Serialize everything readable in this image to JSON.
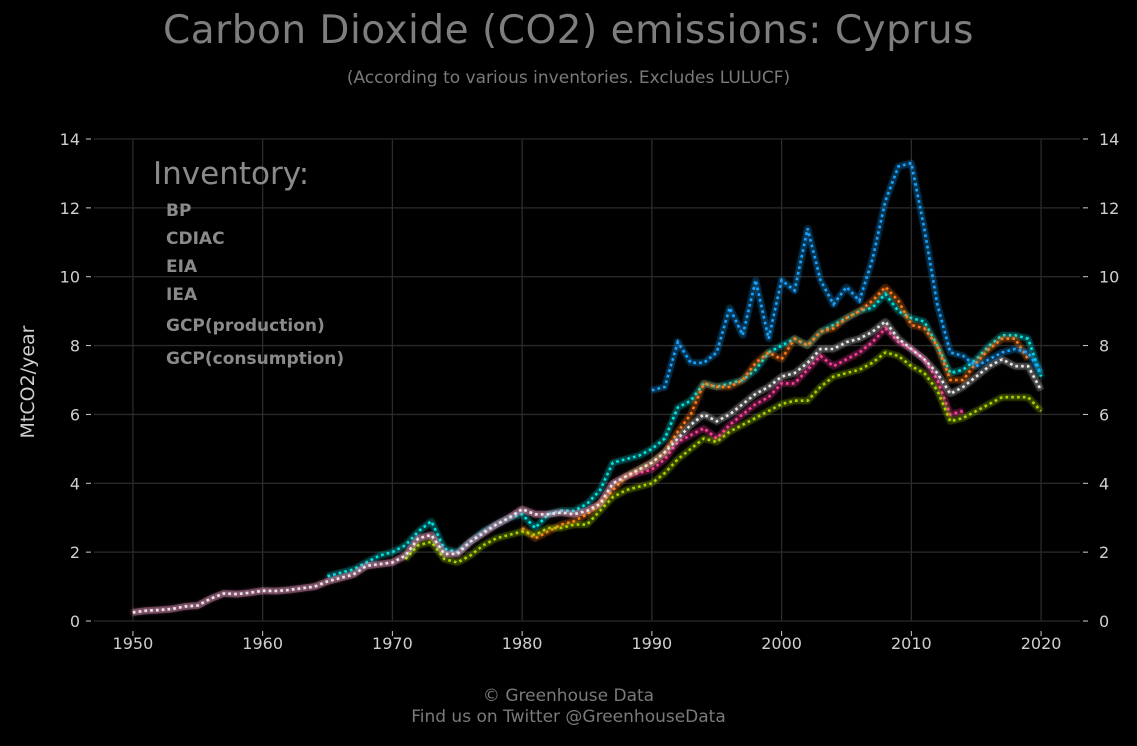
{
  "header": {
    "title": "Carbon Dioxide (CO2) emissions: Cyprus",
    "subtitle": "(According to various inventories. Excludes LULUCF)"
  },
  "footer": {
    "line1": "© Greenhouse Data",
    "line2": "Find us on Twitter @GreenhouseData"
  },
  "chart_data": {
    "type": "line",
    "ylabel": "MtCO2/year",
    "xlim": [
      1947,
      2023
    ],
    "ylim": [
      0,
      14
    ],
    "x_ticks": [
      1950,
      1960,
      1970,
      1980,
      1990,
      2000,
      2010,
      2020
    ],
    "y_ticks": [
      0,
      2,
      4,
      6,
      8,
      10,
      12,
      14
    ],
    "grid": true,
    "line_style": "dotted",
    "legend_title": "Inventory:",
    "legend_position": "top-left",
    "series": [
      {
        "name": "BP",
        "color": "#00e5e5",
        "x": [
          1965,
          1966,
          1967,
          1968,
          1969,
          1970,
          1971,
          1972,
          1973,
          1974,
          1975,
          1976,
          1977,
          1978,
          1979,
          1980,
          1981,
          1982,
          1983,
          1984,
          1985,
          1986,
          1987,
          1988,
          1989,
          1990,
          1991,
          1992,
          1993,
          1994,
          1995,
          1996,
          1997,
          1998,
          1999,
          2000,
          2001,
          2002,
          2003,
          2004,
          2005,
          2006,
          2007,
          2008,
          2009,
          2010,
          2011,
          2012,
          2013,
          2014,
          2015,
          2016,
          2017,
          2018,
          2019,
          2020
        ],
        "values": [
          1.3,
          1.4,
          1.5,
          1.7,
          1.9,
          2.0,
          2.2,
          2.6,
          2.9,
          2.1,
          2.0,
          2.3,
          2.6,
          2.8,
          3.0,
          3.1,
          2.7,
          3.1,
          3.2,
          3.2,
          3.4,
          3.8,
          4.6,
          4.7,
          4.8,
          5.0,
          5.3,
          6.2,
          6.4,
          6.9,
          6.8,
          6.9,
          7.0,
          7.3,
          7.8,
          8.0,
          8.2,
          8.0,
          8.4,
          8.6,
          8.8,
          9.0,
          9.1,
          9.5,
          9.0,
          8.8,
          8.7,
          8.0,
          7.2,
          7.3,
          7.6,
          8.0,
          8.3,
          8.3,
          8.2,
          7.1
        ]
      },
      {
        "name": "CDIAC",
        "color": "#ff3d9a",
        "x": [
          1950,
          1951,
          1952,
          1953,
          1954,
          1955,
          1956,
          1957,
          1958,
          1959,
          1960,
          1961,
          1962,
          1963,
          1964,
          1965,
          1966,
          1967,
          1968,
          1969,
          1970,
          1971,
          1972,
          1973,
          1974,
          1975,
          1976,
          1977,
          1978,
          1979,
          1980,
          1981,
          1982,
          1983,
          1984,
          1985,
          1986,
          1987,
          1988,
          1989,
          1990,
          1991,
          1992,
          1993,
          1994,
          1995,
          1996,
          1997,
          1998,
          1999,
          2000,
          2001,
          2002,
          2003,
          2004,
          2005,
          2006,
          2007,
          2008,
          2009,
          2010,
          2011,
          2012,
          2013,
          2014
        ],
        "values": [
          0.25,
          0.3,
          0.32,
          0.35,
          0.42,
          0.45,
          0.65,
          0.8,
          0.78,
          0.82,
          0.88,
          0.87,
          0.9,
          0.95,
          1.0,
          1.15,
          1.25,
          1.35,
          1.6,
          1.65,
          1.7,
          1.9,
          2.4,
          2.5,
          1.95,
          1.95,
          2.3,
          2.55,
          2.8,
          3.0,
          3.25,
          3.1,
          3.1,
          3.15,
          3.1,
          3.2,
          3.4,
          4.0,
          4.2,
          4.3,
          4.4,
          4.7,
          5.2,
          5.4,
          5.6,
          5.3,
          5.7,
          6.0,
          6.3,
          6.5,
          6.9,
          6.9,
          7.3,
          7.7,
          7.4,
          7.6,
          7.8,
          8.1,
          8.5,
          8.1,
          7.9,
          7.6,
          7.0,
          6.0,
          6.1
        ]
      },
      {
        "name": "EIA",
        "color": "#ff7a1a",
        "x": [
          1980,
          1981,
          1982,
          1983,
          1984,
          1985,
          1986,
          1987,
          1988,
          1989,
          1990,
          1991,
          1992,
          1993,
          1994,
          1995,
          1996,
          1997,
          1998,
          1999,
          2000,
          2001,
          2002,
          2003,
          2004,
          2005,
          2006,
          2007,
          2008,
          2009,
          2010,
          2011,
          2012,
          2013,
          2014,
          2015,
          2016,
          2017,
          2018,
          2019
        ],
        "values": [
          2.7,
          2.4,
          2.6,
          2.8,
          2.9,
          3.1,
          3.4,
          3.8,
          4.2,
          4.4,
          4.6,
          4.9,
          5.5,
          6.0,
          6.9,
          6.8,
          6.8,
          7.0,
          7.5,
          7.8,
          7.6,
          8.2,
          8.0,
          8.4,
          8.5,
          8.8,
          9.0,
          9.3,
          9.7,
          9.3,
          8.6,
          8.5,
          8.0,
          7.0,
          7.0,
          7.5,
          7.9,
          8.2,
          8.2,
          7.6
        ]
      },
      {
        "name": "IEA",
        "color": "#a8d400",
        "x": [
          1971,
          1972,
          1973,
          1974,
          1975,
          1976,
          1977,
          1978,
          1979,
          1980,
          1981,
          1982,
          1983,
          1984,
          1985,
          1986,
          1987,
          1988,
          1989,
          1990,
          1991,
          1992,
          1993,
          1994,
          1995,
          1996,
          1997,
          1998,
          1999,
          2000,
          2001,
          2002,
          2003,
          2004,
          2005,
          2006,
          2007,
          2008,
          2009,
          2010,
          2011,
          2012,
          2013,
          2014,
          2015,
          2016,
          2017,
          2018,
          2019,
          2020
        ],
        "values": [
          1.8,
          2.2,
          2.3,
          1.8,
          1.7,
          1.9,
          2.2,
          2.4,
          2.5,
          2.6,
          2.5,
          2.7,
          2.7,
          2.8,
          2.8,
          3.2,
          3.6,
          3.8,
          3.9,
          4.0,
          4.3,
          4.7,
          5.0,
          5.3,
          5.2,
          5.5,
          5.7,
          5.9,
          6.1,
          6.3,
          6.4,
          6.4,
          6.8,
          7.1,
          7.2,
          7.3,
          7.5,
          7.8,
          7.7,
          7.4,
          7.2,
          6.7,
          5.8,
          5.9,
          6.1,
          6.3,
          6.5,
          6.5,
          6.5,
          6.1
        ]
      },
      {
        "name": "GCP(production)",
        "color": "#e8e8e8",
        "x": [
          1950,
          1951,
          1952,
          1953,
          1954,
          1955,
          1956,
          1957,
          1958,
          1959,
          1960,
          1961,
          1962,
          1963,
          1964,
          1965,
          1966,
          1967,
          1968,
          1969,
          1970,
          1971,
          1972,
          1973,
          1974,
          1975,
          1976,
          1977,
          1978,
          1979,
          1980,
          1981,
          1982,
          1983,
          1984,
          1985,
          1986,
          1987,
          1988,
          1989,
          1990,
          1991,
          1992,
          1993,
          1994,
          1995,
          1996,
          1997,
          1998,
          1999,
          2000,
          2001,
          2002,
          2003,
          2004,
          2005,
          2006,
          2007,
          2008,
          2009,
          2010,
          2011,
          2012,
          2013,
          2014,
          2015,
          2016,
          2017,
          2018,
          2019,
          2020
        ],
        "values": [
          0.25,
          0.3,
          0.32,
          0.35,
          0.42,
          0.45,
          0.65,
          0.8,
          0.78,
          0.82,
          0.88,
          0.87,
          0.9,
          0.95,
          1.0,
          1.15,
          1.25,
          1.35,
          1.6,
          1.65,
          1.7,
          1.9,
          2.4,
          2.5,
          1.95,
          1.95,
          2.3,
          2.55,
          2.8,
          3.0,
          3.25,
          3.1,
          3.1,
          3.15,
          3.1,
          3.2,
          3.4,
          4.0,
          4.2,
          4.4,
          4.6,
          4.9,
          5.3,
          5.7,
          6.0,
          5.8,
          6.0,
          6.3,
          6.6,
          6.8,
          7.1,
          7.2,
          7.5,
          7.9,
          7.9,
          8.1,
          8.2,
          8.4,
          8.7,
          8.2,
          7.9,
          7.6,
          7.2,
          6.6,
          6.8,
          7.1,
          7.4,
          7.6,
          7.4,
          7.4,
          6.7
        ]
      },
      {
        "name": "GCP(consumption)",
        "color": "#1aa3ff",
        "x": [
          1990,
          1991,
          1992,
          1993,
          1994,
          1995,
          1996,
          1997,
          1998,
          1999,
          2000,
          2001,
          2002,
          2003,
          2004,
          2005,
          2006,
          2007,
          2008,
          2009,
          2010,
          2011,
          2012,
          2013,
          2014,
          2015,
          2016,
          2017,
          2018,
          2019,
          2020
        ],
        "values": [
          6.7,
          6.8,
          8.1,
          7.5,
          7.5,
          7.8,
          9.1,
          8.3,
          9.9,
          8.2,
          9.9,
          9.6,
          11.4,
          9.9,
          9.2,
          9.7,
          9.3,
          10.5,
          12.2,
          13.2,
          13.3,
          11.4,
          9.2,
          7.8,
          7.7,
          7.4,
          7.6,
          7.8,
          7.9,
          7.8,
          7.2
        ]
      }
    ]
  }
}
